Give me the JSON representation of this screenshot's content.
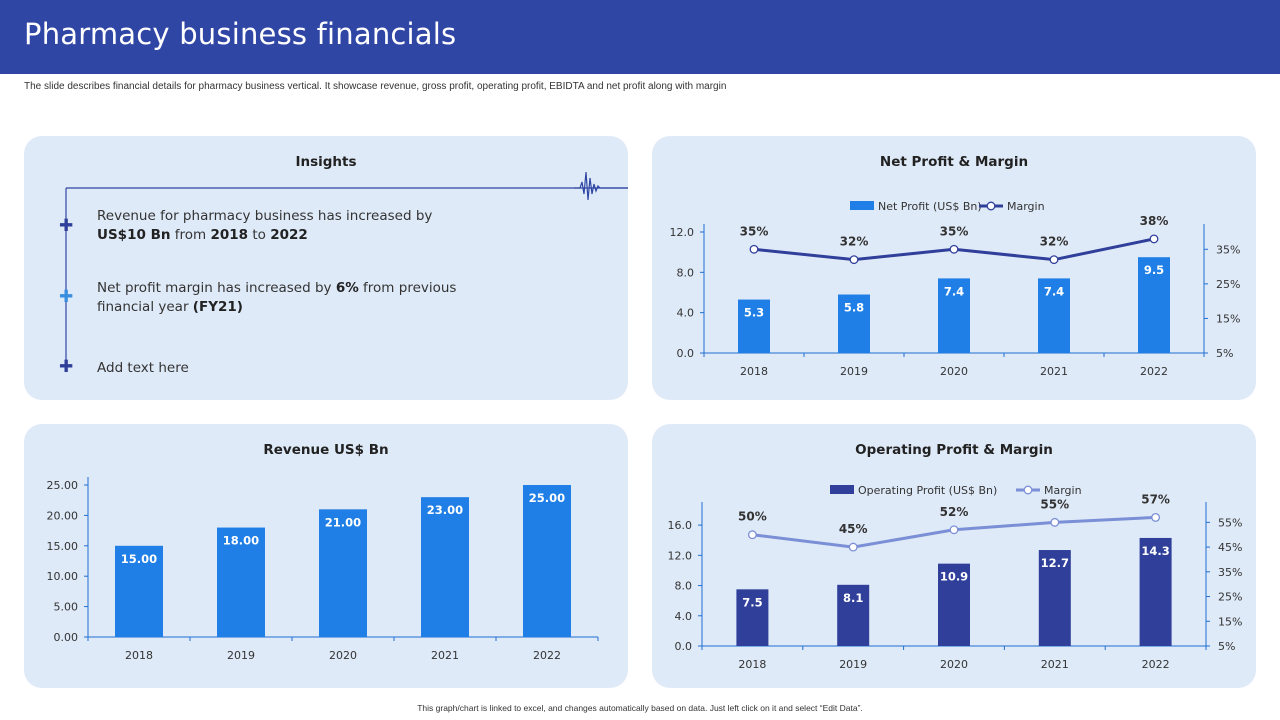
{
  "header": {
    "title": "Pharmacy business financials",
    "subtitle": "The slide describes financial details for pharmacy business vertical. It showcase revenue, gross profit, operating profit, EBIDTA and net profit along with margin"
  },
  "insights": {
    "title": "Insights",
    "item1": {
      "pre": "Revenue for pharmacy business has increased by ",
      "b1": "US$10 Bn",
      "mid1": " from ",
      "b2": "2018",
      "mid2": " to ",
      "b3": "2022"
    },
    "item2": {
      "pre": "Net profit margin has increased by ",
      "b1": "6%",
      "mid1": " from previous financial year ",
      "b2": "(FY21)"
    },
    "item3": {
      "text": "Add text here"
    },
    "colors": {
      "plus1": "#2f3f9a",
      "plus2": "#3a8ee0",
      "plus3": "#2f3f9a",
      "line": "#3046a5"
    }
  },
  "footnote": "This graph/chart is linked to excel, and changes automatically based on data. Just left click on it and select “Edit Data”.",
  "chart_data": [
    {
      "id": "net",
      "type": "bar",
      "title": "Net Profit & Margin",
      "categories": [
        "2018",
        "2019",
        "2020",
        "2021",
        "2022"
      ],
      "series": [
        {
          "name": "Net Profit (US$ Bn)",
          "type": "bar",
          "values": [
            5.3,
            5.8,
            7.4,
            7.4,
            9.5
          ],
          "labels": [
            "5.3",
            "5.8",
            "7.4",
            "7.4",
            "9.5"
          ],
          "color": "#1f7fe6"
        },
        {
          "name": "Margin",
          "type": "line",
          "axis": "right",
          "values": [
            35,
            32,
            35,
            32,
            38
          ],
          "labels": [
            "35%",
            "32%",
            "35%",
            "32%",
            "38%"
          ],
          "color": "#2f3f9a"
        }
      ],
      "ylim": [
        0,
        12
      ],
      "yticks": [
        "0.0",
        "4.0",
        "8.0",
        "12.0"
      ],
      "ytick_values": [
        0,
        4,
        8,
        12
      ],
      "y2lim": [
        5,
        40
      ],
      "y2ticks": [
        "5%",
        "15%",
        "25%",
        "35%"
      ],
      "y2tick_values": [
        5,
        15,
        25,
        35
      ],
      "legend": "top"
    },
    {
      "id": "rev",
      "type": "bar",
      "title": "Revenue US$ Bn",
      "categories": [
        "2018",
        "2019",
        "2020",
        "2021",
        "2022"
      ],
      "series": [
        {
          "name": "",
          "type": "bar",
          "values": [
            15,
            18,
            21,
            23,
            25
          ],
          "labels": [
            "15.00",
            "18.00",
            "21.00",
            "23.00",
            "25.00"
          ],
          "color": "#1f7fe6"
        }
      ],
      "ylim": [
        0,
        25
      ],
      "yticks": [
        "0.00",
        "5.00",
        "10.00",
        "15.00",
        "20.00",
        "25.00"
      ],
      "ytick_values": [
        0,
        5,
        10,
        15,
        20,
        25
      ],
      "legend": "none"
    },
    {
      "id": "op",
      "type": "bar",
      "title": "Operating Profit & Margin",
      "categories": [
        "2018",
        "2019",
        "2020",
        "2021",
        "2022"
      ],
      "series": [
        {
          "name": "Operating Profit (US$ Bn)",
          "type": "bar",
          "values": [
            7.5,
            8.1,
            10.9,
            12.7,
            14.3
          ],
          "labels": [
            "7.5",
            "8.1",
            "10.9",
            "12.7",
            "14.3"
          ],
          "color": "#2f3f9a"
        },
        {
          "name": "Margin",
          "type": "line",
          "axis": "right",
          "values": [
            50,
            45,
            52,
            55,
            57
          ],
          "labels": [
            "50%",
            "45%",
            "52%",
            "55%",
            "57%"
          ],
          "color": "#7b8fd6"
        }
      ],
      "ylim": [
        0,
        18
      ],
      "yticks": [
        "0.0",
        "4.0",
        "8.0",
        "12.0",
        "16.0"
      ],
      "ytick_values": [
        0,
        4,
        8,
        12,
        16
      ],
      "y2lim": [
        5,
        60
      ],
      "y2ticks": [
        "5%",
        "15%",
        "25%",
        "35%",
        "45%",
        "55%"
      ],
      "y2tick_values": [
        5,
        15,
        25,
        35,
        45,
        55
      ],
      "legend": "top"
    }
  ]
}
